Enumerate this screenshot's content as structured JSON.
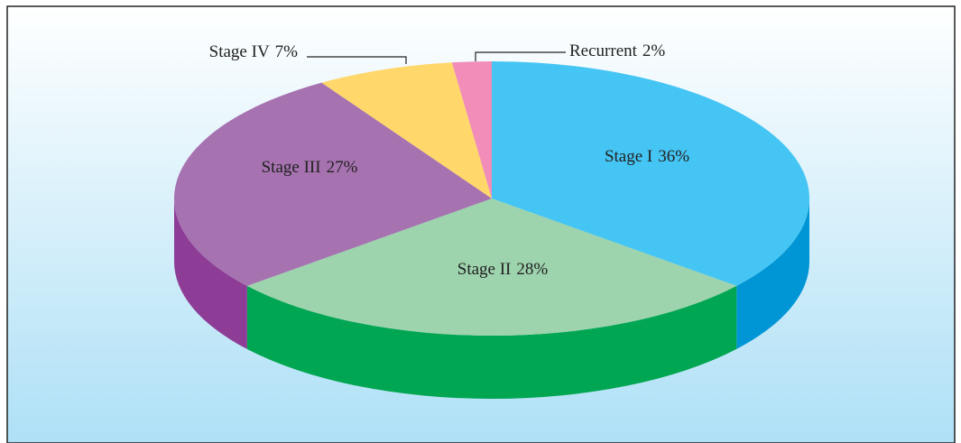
{
  "chart_data": {
    "type": "pie",
    "categories": [
      "Stage I",
      "Stage II",
      "Stage III",
      "Stage IV",
      "Recurrent"
    ],
    "values": [
      36,
      28,
      27,
      7,
      2
    ],
    "value_labels": [
      "36%",
      "28%",
      "27%",
      "7%",
      "2%"
    ],
    "colors": [
      "#45c5f3",
      "#9dd3ad",
      "#a672b0",
      "#ffd76a",
      "#f28cb9"
    ],
    "side_colors": [
      "#0096d6",
      "#00a651",
      "#8e3d97",
      "#e8b93c",
      "#d86a9c"
    ]
  }
}
